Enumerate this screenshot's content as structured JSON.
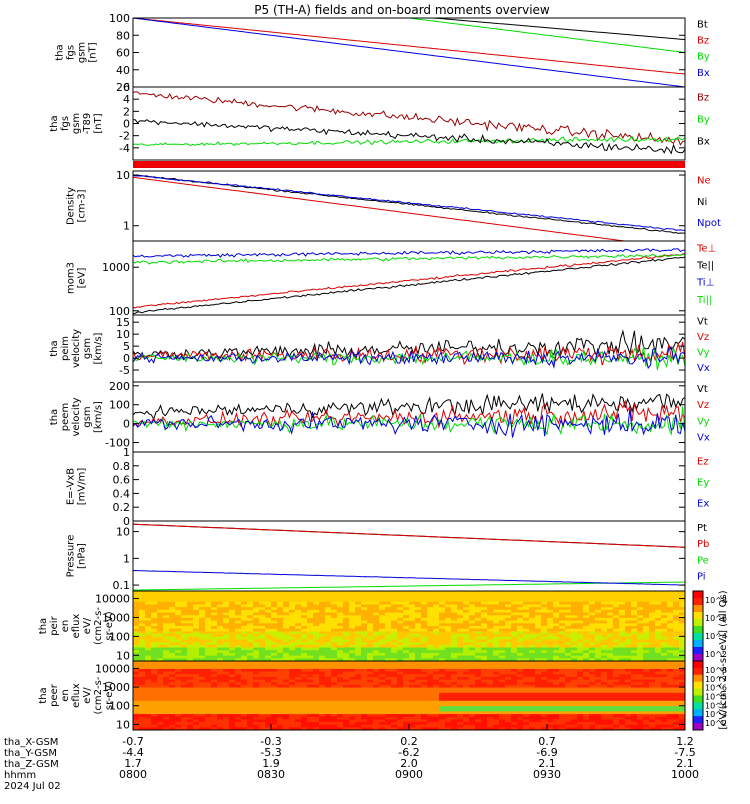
{
  "title": "P5 (TH-A) fields and on-board moments overview",
  "chart_data": [
    {
      "type": "line",
      "ylabel": [
        "tha",
        "fgs",
        "gsm",
        "[nT]"
      ],
      "ylim": [
        20,
        100
      ],
      "yticks": [
        20,
        40,
        60,
        80,
        100
      ],
      "series": [
        {
          "name": "Bt",
          "color": "#000000",
          "start": 130,
          "end": 75,
          "noise": 0
        },
        {
          "name": "Bz",
          "color": "#dd0000",
          "start": 100,
          "end": 35,
          "noise": 0
        },
        {
          "name": "By",
          "color": "#00dd00",
          "start": 140,
          "end": 60,
          "noise": 0
        },
        {
          "name": "Bx",
          "color": "#0000dd",
          "start": 100,
          "end": 20,
          "noise": 0
        }
      ]
    },
    {
      "type": "line",
      "ylabel": [
        "tha",
        "fgs",
        "gsm",
        "-T89",
        "[nT]"
      ],
      "ylim": [
        -6,
        6
      ],
      "yticks": [
        -4,
        -2,
        0,
        2,
        4,
        6
      ],
      "series": [
        {
          "name": "Bz",
          "color": "#990000",
          "start": 5,
          "end": -3,
          "noise": 0.6
        },
        {
          "name": "By",
          "color": "#00dd00",
          "start": -3.5,
          "end": -2.5,
          "noise": 0.3
        },
        {
          "name": "Bx",
          "color": "#000000",
          "start": 0.5,
          "end": -4.5,
          "noise": 0.5
        }
      ]
    },
    {
      "type": "line",
      "ylabel": [
        "Density",
        "[cm-3]"
      ],
      "scale": "log",
      "ylim": [
        0.5,
        12
      ],
      "yticks": [
        1,
        10
      ],
      "series": [
        {
          "name": "Ne",
          "color": "#dd0000",
          "start": 9,
          "end": 0.35,
          "noise": 0
        },
        {
          "name": "Ni",
          "color": "#000000",
          "start": 10,
          "end": 0.7,
          "noise": 0.03
        },
        {
          "name": "Npot",
          "color": "#0000dd",
          "start": 10,
          "end": 0.8,
          "noise": 0.03
        }
      ]
    },
    {
      "type": "line",
      "ylabel": [
        "mom3",
        "[eV]"
      ],
      "scale": "log",
      "ylim": [
        80,
        4000
      ],
      "yticks": [
        100,
        1000
      ],
      "series": [
        {
          "name": "Te⊥",
          "color": "#dd0000",
          "start": 120,
          "end": 2000,
          "noise": 0.05
        },
        {
          "name": "Te||",
          "color": "#000000",
          "start": 90,
          "end": 1700,
          "noise": 0.05
        },
        {
          "name": "Ti⊥",
          "color": "#0000dd",
          "start": 1800,
          "end": 2500,
          "noise": 0.08
        },
        {
          "name": "Ti||",
          "color": "#00dd00",
          "start": 1300,
          "end": 1900,
          "noise": 0.08
        }
      ]
    },
    {
      "type": "line",
      "ylabel": [
        "tha",
        "peim",
        "velocity",
        "gsm",
        "[km/s]"
      ],
      "ylim": [
        -10,
        18
      ],
      "yticks": [
        -5,
        0,
        5,
        10,
        15
      ],
      "series": [
        {
          "name": "Vt",
          "color": "#000000",
          "start": 1.5,
          "end": 6,
          "noise": 3
        },
        {
          "name": "Vz",
          "color": "#dd0000",
          "start": 1,
          "end": 2,
          "noise": 3
        },
        {
          "name": "Vy",
          "color": "#00dd00",
          "start": 0,
          "end": 0,
          "noise": 2.5
        },
        {
          "name": "Vx",
          "color": "#0000dd",
          "start": 0,
          "end": 0,
          "noise": 2.5
        }
      ]
    },
    {
      "type": "line",
      "ylabel": [
        "tha",
        "peem",
        "velocity",
        "gsm",
        "[km/s]"
      ],
      "ylim": [
        -150,
        220
      ],
      "yticks": [
        -100,
        0,
        100,
        200
      ],
      "series": [
        {
          "name": "Vt",
          "color": "#000000",
          "start": 60,
          "end": 120,
          "noise": 40
        },
        {
          "name": "Vz",
          "color": "#dd0000",
          "start": 10,
          "end": 60,
          "noise": 40
        },
        {
          "name": "Vy",
          "color": "#00dd00",
          "start": 0,
          "end": 0,
          "noise": 40
        },
        {
          "name": "Vx",
          "color": "#0000dd",
          "start": 0,
          "end": 0,
          "noise": 45
        }
      ]
    },
    {
      "type": "line",
      "ylabel": [
        "E=-VxB",
        "[mV/m]"
      ],
      "ylim": [
        0,
        1
      ],
      "yticks": [
        0.0,
        0.2,
        0.4,
        0.6,
        0.8,
        1.0
      ],
      "series": [
        {
          "name": "Ez",
          "color": "#dd0000",
          "empty": true
        },
        {
          "name": "Ey",
          "color": "#00dd00",
          "empty": true
        },
        {
          "name": "Ex",
          "color": "#0000dd",
          "empty": true
        }
      ]
    },
    {
      "type": "line",
      "ylabel": [
        "Pressure",
        "[nPa]"
      ],
      "scale": "log",
      "ylim": [
        0.06,
        25
      ],
      "yticks": [
        0.1,
        1.0,
        10.0
      ],
      "series": [
        {
          "name": "Pt",
          "color": "#000000",
          "start": 19,
          "end": 2.6,
          "noise": 0
        },
        {
          "name": "Pb",
          "color": "#dd0000",
          "start": 19,
          "end": 2.6,
          "noise": 0
        },
        {
          "name": "Pe",
          "color": "#00dd00",
          "start": 0.065,
          "end": 0.13,
          "noise": 0
        },
        {
          "name": "Pi",
          "color": "#0000dd",
          "start": 0.35,
          "end": 0.1,
          "noise": 0.01
        }
      ]
    },
    {
      "type": "heatmap",
      "ylabel": [
        "tha",
        "peir",
        "en",
        "eflux",
        "eV/",
        "(cm2-s-",
        "sr-eV)"
      ],
      "scale": "log",
      "ylim": [
        5,
        25000
      ],
      "yticks": [
        10,
        100,
        1000,
        10000
      ]
    },
    {
      "type": "heatmap",
      "ylabel": [
        "tha",
        "peer",
        "en",
        "eflux",
        "eV/",
        "(cm2-s-",
        "sr-eV)"
      ],
      "scale": "log",
      "ylim": [
        5,
        25000
      ],
      "yticks": [
        10,
        100,
        1000,
        10000
      ]
    }
  ],
  "colorbars": [
    {
      "ticks": [
        "10^8",
        "10^6",
        "10^4",
        "10^2"
      ]
    },
    {
      "ticks": [
        "10^8",
        "10^7",
        "10^6",
        "10^5",
        "10^4",
        "10^3",
        "10^2"
      ]
    }
  ],
  "colorbar_title": "[eV/(cm^2-s-sr-eV)] (All Qs)",
  "xaxis": {
    "row_labels": [
      "tha_X-GSM",
      "tha_Y-GSM",
      "tha_Z-GSM",
      "hhmm",
      "2024 Jul 02"
    ],
    "ticks": [
      {
        "t": 0,
        "vals": [
          "-0.7",
          "-4.4",
          "1.7",
          "0800"
        ]
      },
      {
        "t": 30,
        "vals": [
          "-0.3",
          "-5.3",
          "1.9",
          "0830"
        ]
      },
      {
        "t": 60,
        "vals": [
          "0.2",
          "-6.2",
          "2.0",
          "0900"
        ]
      },
      {
        "t": 90,
        "vals": [
          "0.7",
          "-6.9",
          "2.1",
          "0930"
        ]
      },
      {
        "t": 120,
        "vals": [
          "1.2",
          "-7.5",
          "2.1",
          "1000"
        ]
      }
    ],
    "range": [
      0,
      120
    ]
  }
}
